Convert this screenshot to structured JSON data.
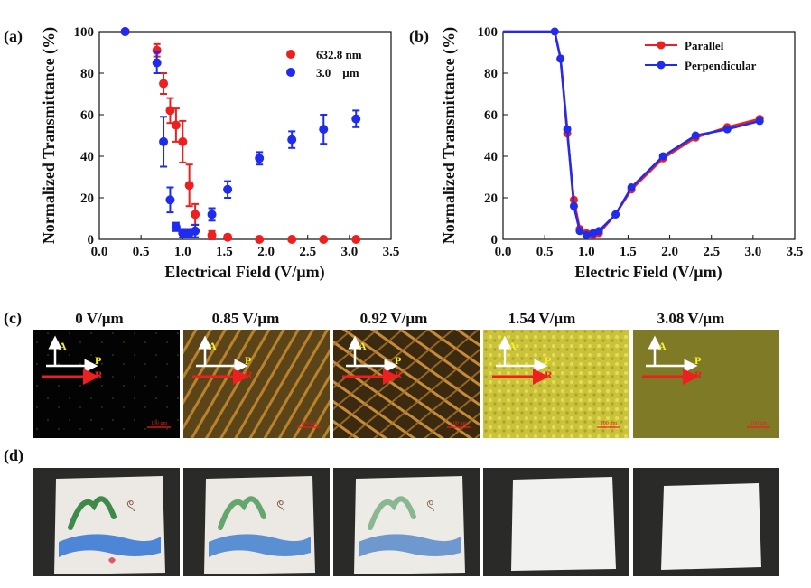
{
  "colors": {
    "red": "#ee1f1f",
    "blue": "#1f2bee",
    "yellow": "#f5ee2a",
    "white": "#ffffff"
  },
  "chart_data": [
    {
      "type": "scatter",
      "panel": "(a)",
      "xlabel": "Electrical Field (V/µm)",
      "ylabel": "Normalized Transmittance (%)",
      "xlim": [
        0.0,
        3.5
      ],
      "ylim": [
        0,
        100
      ],
      "xticks": [
        "0.0",
        "0.5",
        "1.0",
        "1.5",
        "2.0",
        "2.5",
        "3.0",
        "3.5"
      ],
      "yticks": [
        "0",
        "20",
        "40",
        "60",
        "80",
        "100"
      ],
      "legend_position": "top-right",
      "series": [
        {
          "name": "632.8 nm",
          "color": "#ee1f1f",
          "x": [
            0.31,
            0.69,
            0.77,
            0.85,
            0.92,
            1.0,
            1.08,
            1.15,
            1.35,
            1.54,
            1.92,
            2.31,
            2.69,
            3.08
          ],
          "y": [
            100,
            91,
            75,
            62,
            55,
            47,
            26,
            12,
            2,
            1,
            0,
            0,
            0,
            0
          ],
          "err": [
            0,
            3,
            5,
            6,
            8,
            10,
            10,
            5,
            2,
            1,
            0,
            0,
            0,
            0
          ]
        },
        {
          "name": "3.0    µm",
          "color": "#1f2bee",
          "x": [
            0.31,
            0.69,
            0.77,
            0.85,
            0.92,
            1.0,
            1.08,
            1.15,
            1.35,
            1.54,
            1.92,
            2.31,
            2.69,
            3.08
          ],
          "y": [
            100,
            85,
            47,
            19,
            6,
            3,
            3,
            4,
            12,
            24,
            39,
            48,
            53,
            58
          ],
          "err": [
            0,
            5,
            12,
            6,
            2,
            2,
            2,
            3,
            3,
            4,
            3,
            4,
            7,
            4
          ]
        }
      ]
    },
    {
      "type": "line",
      "panel": "(b)",
      "xlabel": "Electric Field (V/µm)",
      "ylabel": "Normalized Transmittance (%)",
      "xlim": [
        0.0,
        3.5
      ],
      "ylim": [
        0,
        100
      ],
      "xticks": [
        "0.0",
        "0.5",
        "1.0",
        "1.5",
        "2.0",
        "2.5",
        "3.0",
        "3.5"
      ],
      "yticks": [
        "0",
        "20",
        "40",
        "60",
        "80",
        "100"
      ],
      "legend_position": "top-right",
      "series": [
        {
          "name": "Parallel",
          "color": "#ee1f1f",
          "x": [
            0.0,
            0.62,
            0.69,
            0.77,
            0.85,
            0.92,
            1.0,
            1.08,
            1.15,
            1.35,
            1.54,
            1.92,
            2.31,
            2.69,
            3.08
          ],
          "y": [
            100,
            100,
            87,
            51,
            19,
            5,
            3,
            2,
            3,
            12,
            24,
            39,
            49,
            54,
            58
          ]
        },
        {
          "name": "Perpendicular",
          "color": "#1f2bee",
          "x": [
            0.0,
            0.62,
            0.69,
            0.77,
            0.85,
            0.92,
            1.0,
            1.08,
            1.15,
            1.35,
            1.54,
            1.92,
            2.31,
            2.69,
            3.08
          ],
          "y": [
            100,
            100,
            87,
            53,
            16,
            4,
            2,
            3,
            4,
            12,
            25,
            40,
            50,
            53,
            57
          ]
        }
      ]
    }
  ],
  "panel_c": {
    "letter": "(c)",
    "axis_labels": {
      "a": "A",
      "p": "P",
      "r": "R"
    },
    "fields": [
      "0 V/µm",
      "0.85 V/µm",
      "0.92 V/µm",
      "1.54 V/µm",
      "3.08 V/µm"
    ],
    "scale_bar": "100 µm"
  },
  "panel_d": {
    "letter": "(d)"
  }
}
